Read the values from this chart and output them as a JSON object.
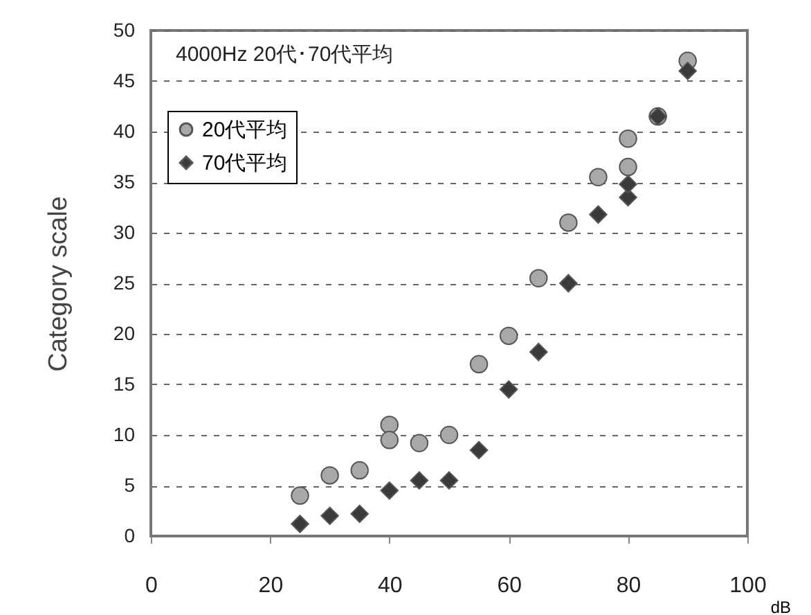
{
  "chart_data": {
    "type": "scatter",
    "title": "4000Hz  20代･70代平均",
    "xlabel": "dB",
    "ylabel": "Category scale",
    "xlim": [
      0,
      100
    ],
    "xticks": [
      0,
      20,
      40,
      60,
      80,
      100
    ],
    "ylim": [
      0,
      50
    ],
    "yticks": [
      0,
      5,
      10,
      15,
      20,
      25,
      30,
      35,
      40,
      45,
      50
    ],
    "grid": "y",
    "legend": "top left",
    "series": [
      {
        "name": "20代平均",
        "color": "#a8a8a8",
        "marker": "circle",
        "x": [
          25,
          30,
          35,
          40,
          40,
          45,
          50,
          55,
          60,
          65,
          70,
          75,
          80,
          80,
          85,
          90
        ],
        "values": [
          4,
          6,
          6.5,
          11,
          9.5,
          9.2,
          10,
          17,
          19.8,
          25.5,
          31,
          35.5,
          36.5,
          39.3,
          41.5,
          47
        ]
      },
      {
        "name": "70代平均",
        "color": "#3a3a3a",
        "marker": "diamond",
        "x": [
          25,
          30,
          35,
          40,
          45,
          50,
          55,
          60,
          65,
          70,
          75,
          80,
          80,
          85,
          90
        ],
        "values": [
          1.2,
          2,
          2.2,
          4.5,
          5.5,
          5.5,
          8.5,
          14.5,
          18.2,
          25,
          31.8,
          33.5,
          34.8,
          41.5,
          46
        ]
      }
    ]
  }
}
